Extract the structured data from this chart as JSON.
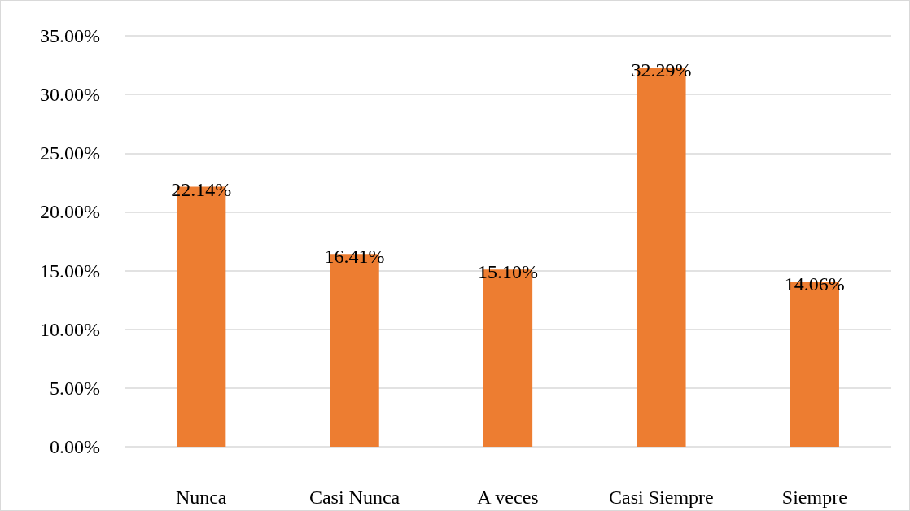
{
  "chart_data": {
    "type": "bar",
    "categories": [
      "Nunca",
      "Casi Nunca",
      "A veces",
      "Casi Siempre",
      "Siempre"
    ],
    "values": [
      22.14,
      16.41,
      15.1,
      32.29,
      14.06
    ],
    "value_labels": [
      "22.14%",
      "16.41%",
      "15.10%",
      "32.29%",
      "14.06%"
    ],
    "color": "#ed7d31",
    "ylim": [
      0,
      35
    ],
    "yticks": [
      {
        "value": 0,
        "label": "0.00%"
      },
      {
        "value": 5,
        "label": "5.00%"
      },
      {
        "value": 10,
        "label": "10.00%"
      },
      {
        "value": 15,
        "label": "15.00%"
      },
      {
        "value": 20,
        "label": "20.00%"
      },
      {
        "value": 25,
        "label": "25.00%"
      },
      {
        "value": 30,
        "label": "30.00%"
      },
      {
        "value": 35,
        "label": "35.00%"
      }
    ],
    "grid": true
  }
}
